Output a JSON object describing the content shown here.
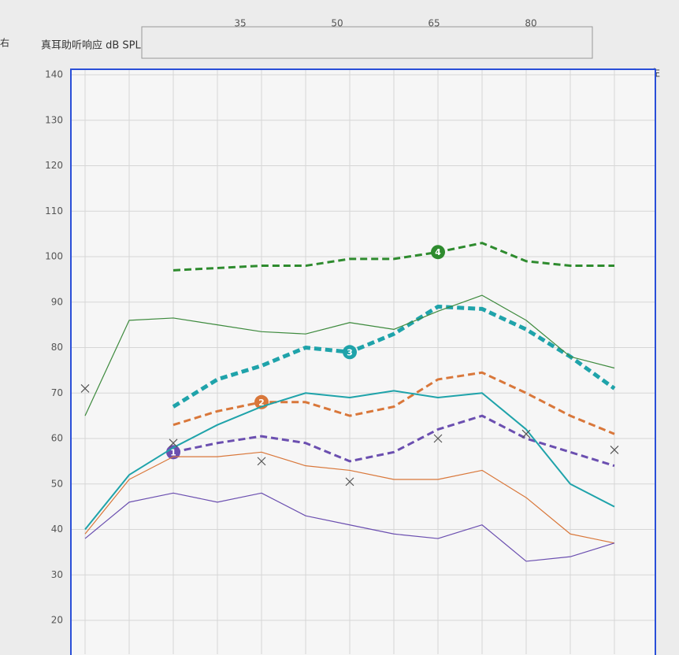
{
  "left_label": "右",
  "right_label": "左",
  "slider_ticks": [
    35,
    50,
    65,
    80
  ],
  "chart_data": {
    "type": "line",
    "title": "真耳助听响应 dB SPL",
    "categories": [
      null,
      null,
      null,
      null,
      null,
      null,
      null,
      null,
      null,
      null,
      null,
      null,
      null
    ],
    "ylim": [
      20,
      140
    ],
    "yticks": [
      20,
      30,
      40,
      50,
      60,
      70,
      80,
      90,
      100,
      110,
      120,
      130,
      140
    ],
    "grid": true,
    "series": [
      {
        "label": "4",
        "color": "#2e8b2e",
        "dash": true,
        "width": 3,
        "values": [
          null,
          null,
          97,
          97.5,
          98,
          98,
          99.5,
          99.5,
          101,
          103,
          99,
          98,
          98
        ]
      },
      {
        "label": "3",
        "color": "#1fa3aa",
        "dash": true,
        "width": 5,
        "values": [
          null,
          null,
          67,
          73,
          76,
          80,
          79,
          83,
          89,
          88.5,
          84,
          78,
          71
        ]
      },
      {
        "label": "2",
        "color": "#d9773a",
        "dash": true,
        "width": 3,
        "values": [
          null,
          null,
          63,
          66,
          68,
          68,
          65,
          67,
          73,
          74.5,
          70,
          65,
          61
        ]
      },
      {
        "label": "1",
        "color": "#6b4fb0",
        "dash": true,
        "width": 3,
        "values": [
          null,
          null,
          57,
          59,
          60.5,
          59,
          55,
          57,
          62,
          65,
          60,
          57,
          54
        ]
      },
      {
        "color": "#3d8a3d",
        "dash": false,
        "width": 1.2,
        "values": [
          65,
          86,
          86.5,
          85,
          83.5,
          83,
          85.5,
          84,
          88,
          91.5,
          86,
          78,
          75.5
        ]
      },
      {
        "color": "#1fa3aa",
        "dash": false,
        "width": 2,
        "values": [
          40,
          52,
          58,
          63,
          67,
          70,
          69,
          70.5,
          69,
          70,
          62,
          50,
          45
        ]
      },
      {
        "color": "#d9773a",
        "dash": false,
        "width": 1.2,
        "values": [
          39,
          51,
          56,
          56,
          57,
          54,
          53,
          51,
          51,
          53,
          47,
          39,
          37
        ]
      },
      {
        "color": "#6b4fb0",
        "dash": false,
        "width": 1.2,
        "values": [
          38,
          46,
          48,
          46,
          48,
          43,
          41,
          39,
          38,
          41,
          33,
          34,
          37
        ]
      },
      {
        "color": "#555555",
        "marker": "x",
        "values": [
          71,
          null,
          59,
          null,
          55,
          null,
          50.5,
          null,
          60,
          null,
          61,
          null,
          57.5
        ]
      }
    ]
  }
}
